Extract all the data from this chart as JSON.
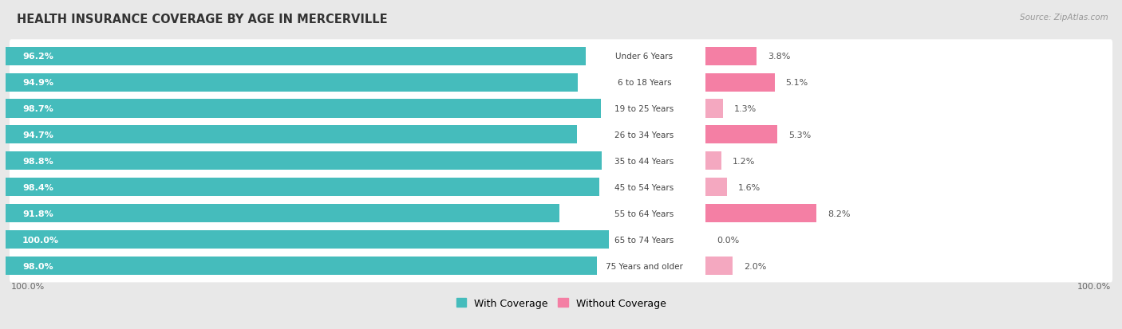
{
  "title": "HEALTH INSURANCE COVERAGE BY AGE IN MERCERVILLE",
  "source": "Source: ZipAtlas.com",
  "categories": [
    "Under 6 Years",
    "6 to 18 Years",
    "19 to 25 Years",
    "26 to 34 Years",
    "35 to 44 Years",
    "45 to 54 Years",
    "55 to 64 Years",
    "65 to 74 Years",
    "75 Years and older"
  ],
  "with_coverage": [
    96.2,
    94.9,
    98.7,
    94.7,
    98.8,
    98.4,
    91.8,
    100.0,
    98.0
  ],
  "without_coverage": [
    3.8,
    5.1,
    1.3,
    5.3,
    1.2,
    1.6,
    8.2,
    0.0,
    2.0
  ],
  "coverage_color": "#45BCBC",
  "no_coverage_color": "#F47FA4",
  "no_coverage_color_light": "#F4A8C0",
  "bg_color": "#e8e8e8",
  "row_bg_color": "#ffffff",
  "row_separator_color": "#d0d0d0",
  "title_fontsize": 10.5,
  "label_fontsize": 8.0,
  "tick_fontsize": 8.0,
  "legend_fontsize": 9.0,
  "source_fontsize": 7.5,
  "left_axis_label": "100.0%",
  "right_axis_label": "100.0%"
}
